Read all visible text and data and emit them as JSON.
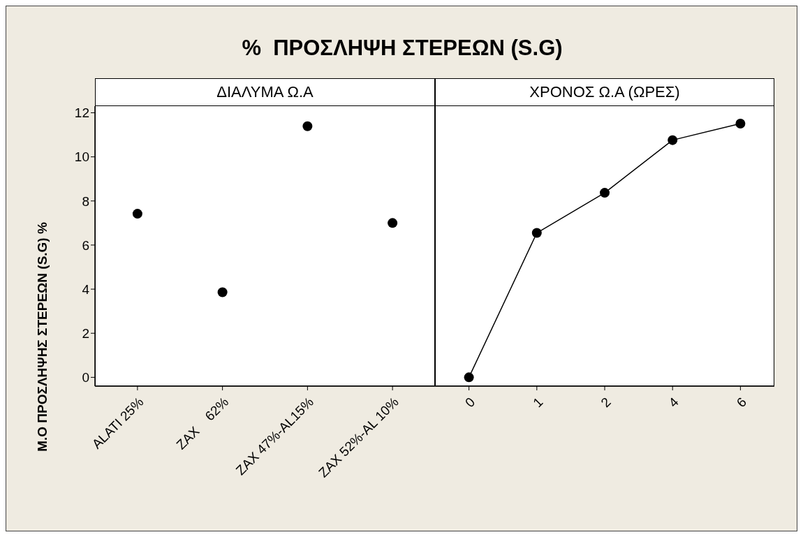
{
  "chart_data": [
    {
      "type": "scatter",
      "title": "%  ΠΡΟΣΛΗΨΗ ΣΤΕΡΕΩΝ (S.G)",
      "subtitle": "ΔΙΑΛΥΜΑ Ω.Α",
      "ylabel": "Μ.Ο ΠΡΟΣΛΗΨΗΣ ΣΤΕΡΕΩΝ (S.G)  %",
      "categories": [
        "ALATI 25%",
        "ZAX    62%",
        "ZAX 47%-AL15%",
        "ZAX 52%-AL 10%"
      ],
      "values": [
        7.42,
        3.86,
        11.39,
        7.0
      ],
      "color": "#000000",
      "marker": "circle",
      "ylim": [
        -0.4,
        12.3
      ],
      "yticks": [
        0,
        2,
        4,
        6,
        8,
        10,
        12
      ]
    },
    {
      "type": "line",
      "subtitle": "ΧΡΟΝΟΣ Ω.Α (ΩΡΕΣ)",
      "categories": [
        "0",
        "1",
        "2",
        "4",
        "6"
      ],
      "values": [
        0,
        6.55,
        8.37,
        10.76,
        11.51
      ],
      "color": "#000000",
      "marker": "circle",
      "line_style": "solid",
      "ylim": [
        -0.4,
        12.3
      ],
      "tick_labels": "x"
    }
  ]
}
